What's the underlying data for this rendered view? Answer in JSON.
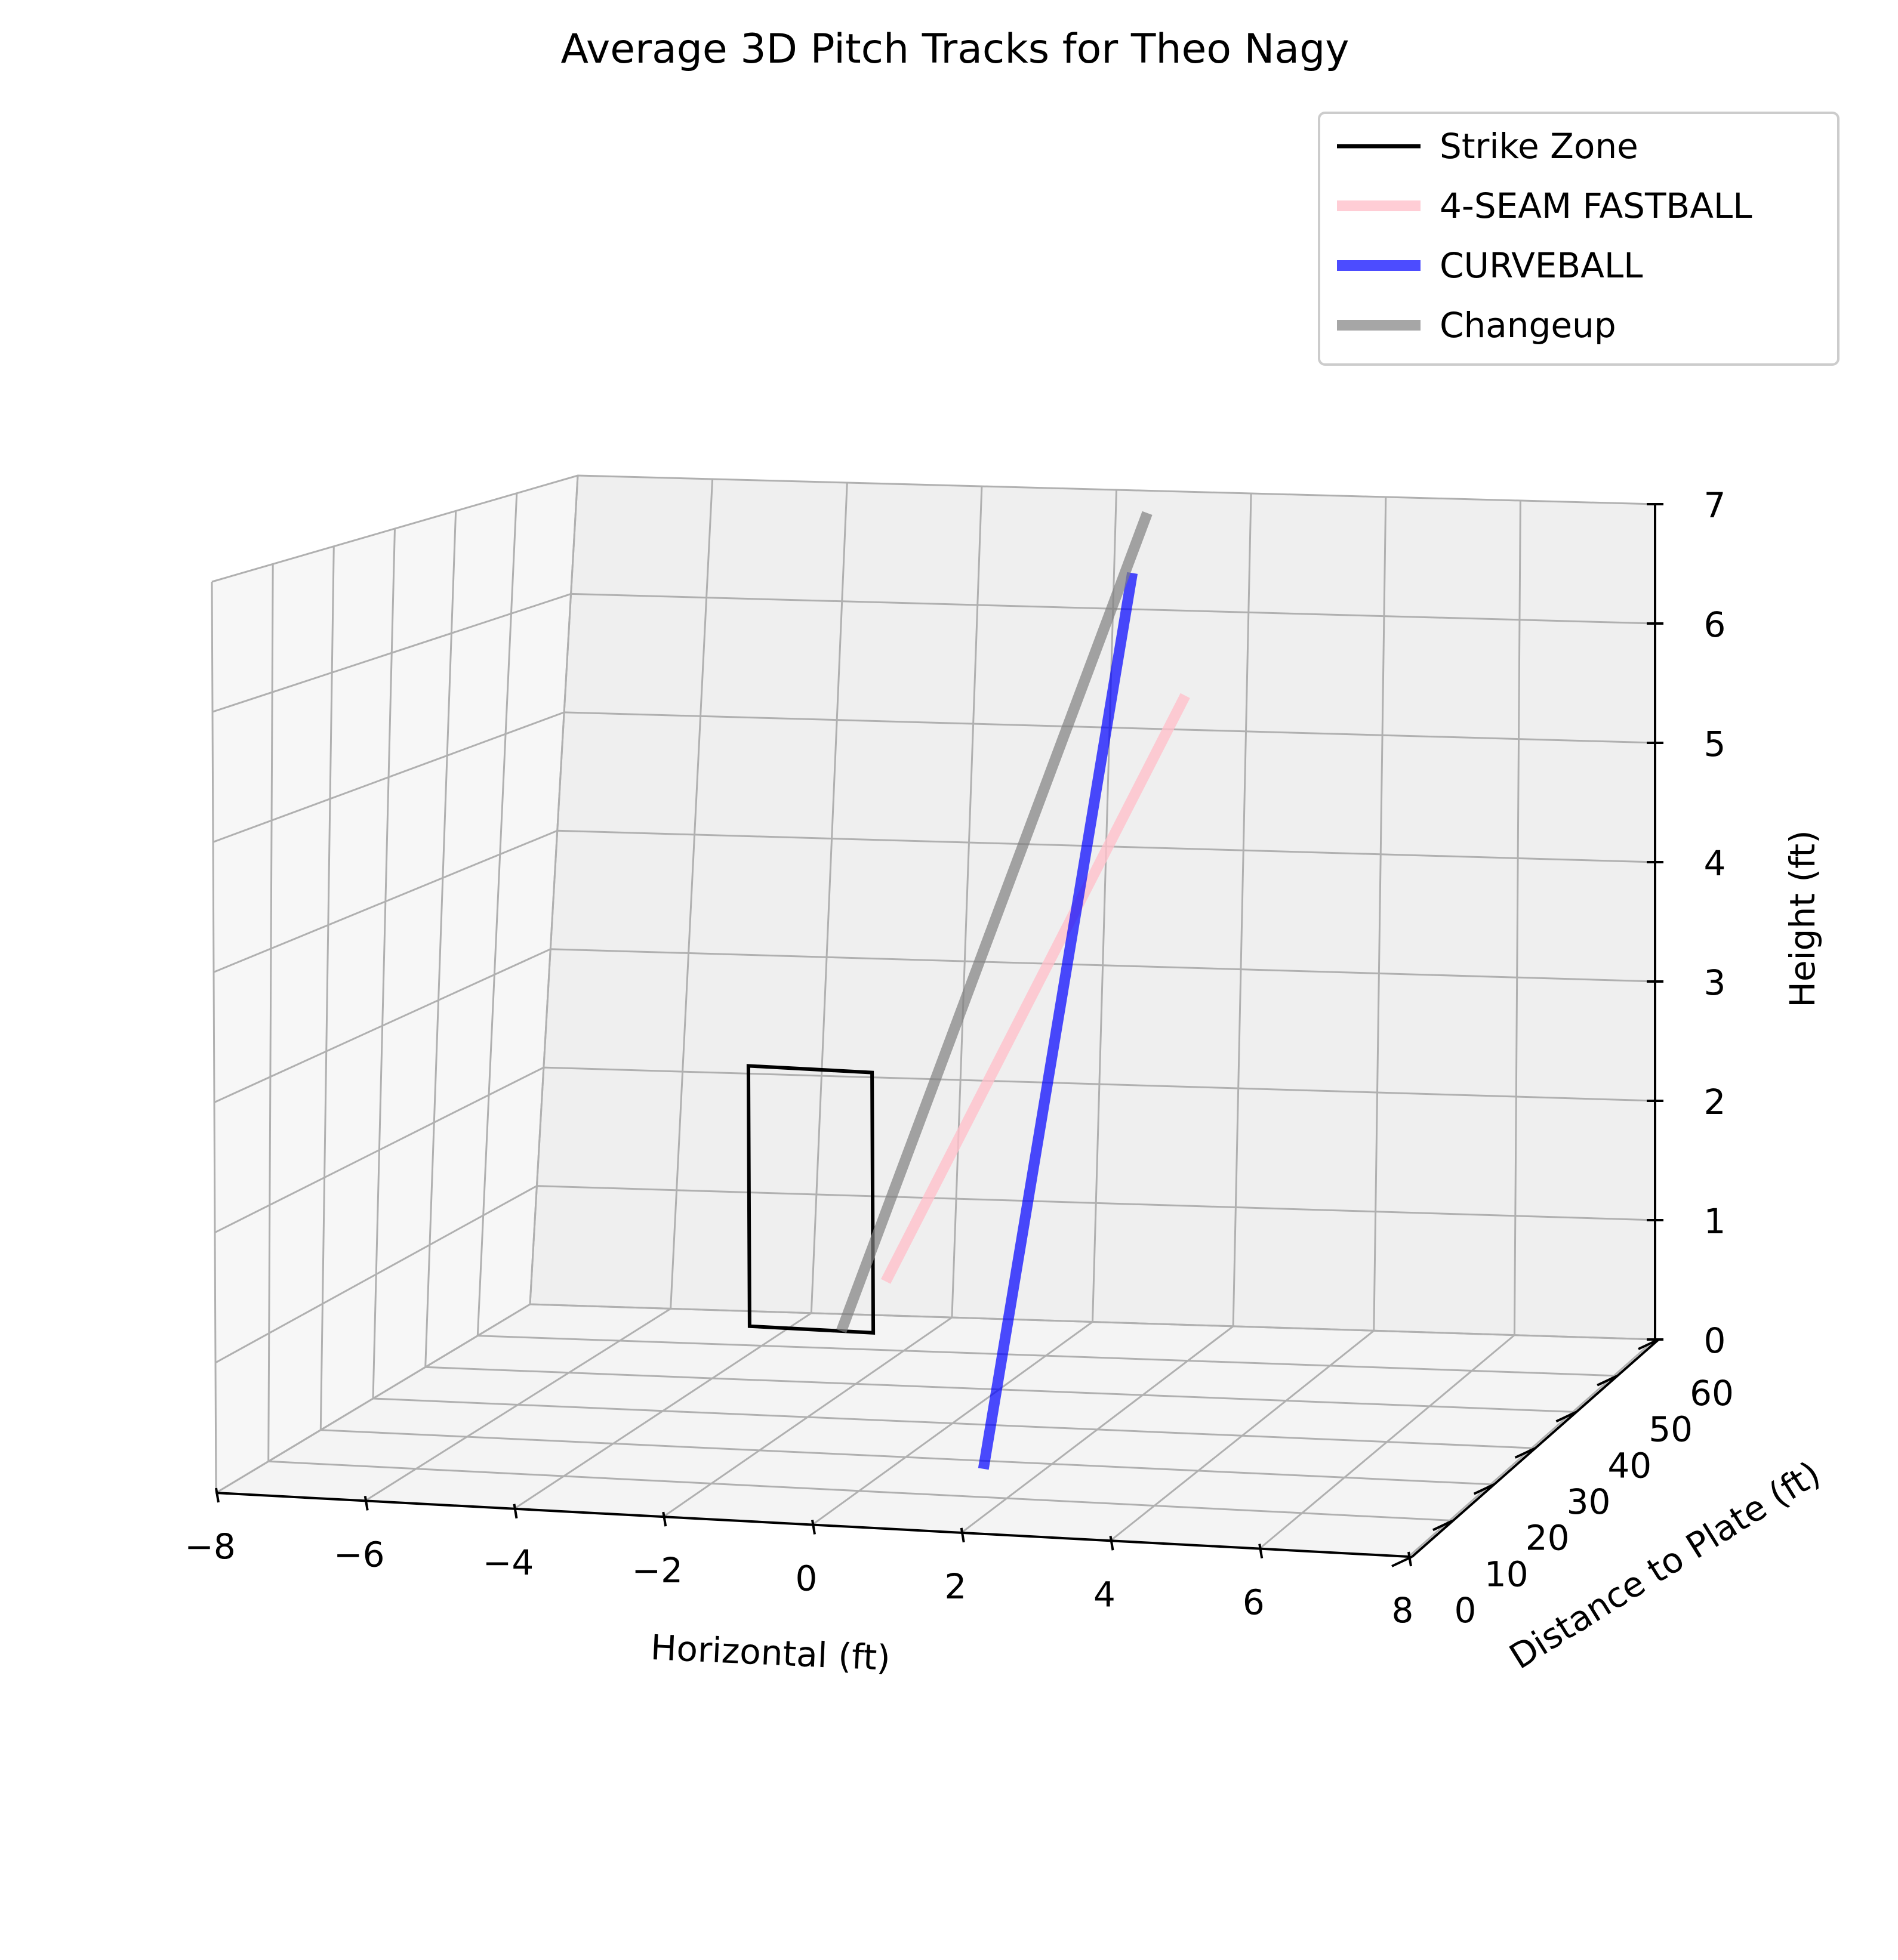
{
  "chart_data": {
    "type": "line",
    "projection": "3d",
    "title": "Average 3D Pitch Tracks for Theo Nagy",
    "xlabel": "Horizontal (ft)",
    "ylabel": "Distance to Plate (ft)",
    "zlabel": "Height (ft)",
    "xlim": [
      -8,
      8
    ],
    "ylim": [
      0,
      60
    ],
    "zlim": [
      0,
      7
    ],
    "x_ticks": [
      "−8",
      "−6",
      "−4",
      "−2",
      "0",
      "2",
      "4",
      "6",
      "8"
    ],
    "y_ticks": [
      "0",
      "10",
      "20",
      "30",
      "40",
      "50",
      "60"
    ],
    "z_ticks": [
      "0",
      "1",
      "2",
      "3",
      "4",
      "5",
      "6",
      "7"
    ],
    "grid": true,
    "legend": {
      "placement": "top-right"
    },
    "strike_zone": {
      "name": "Strike Zone",
      "color": "#000000",
      "x": [
        -0.83,
        0.83
      ],
      "distance": 0,
      "z": [
        1.5,
        3.5
      ]
    },
    "series": [
      {
        "name": "4-SEAM FASTBALL",
        "color": "#ffc0cb",
        "alpha": 0.8,
        "start": {
          "x": 1.8,
          "distance": 50,
          "z": 5.5
        },
        "end": {
          "x": 1.0,
          "distance": 0,
          "z": 1.9
        }
      },
      {
        "name": "CURVEBALL",
        "color": "#0000ff",
        "alpha": 0.7,
        "start": {
          "x": 1.0,
          "distance": 50,
          "z": 6.5
        },
        "end": {
          "x": 2.3,
          "distance": 0,
          "z": 0.5
        }
      },
      {
        "name": "Changeup",
        "color": "#808080",
        "alpha": 0.7,
        "start": {
          "x": 1.2,
          "distance": 50,
          "z": 7.0
        },
        "end": {
          "x": 0.4,
          "distance": 0,
          "z": 1.5
        }
      }
    ]
  }
}
